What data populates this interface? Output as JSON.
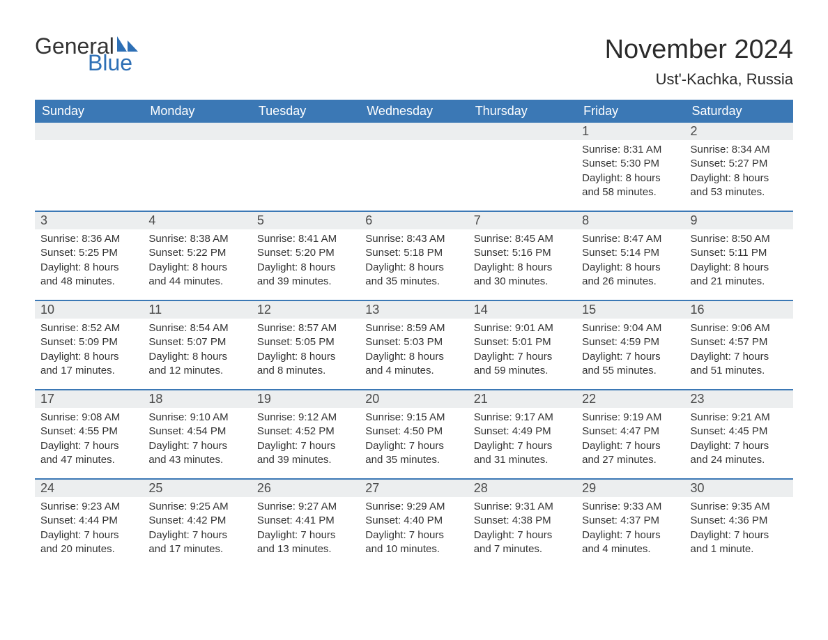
{
  "logo": {
    "line1": "General",
    "line2": "Blue",
    "accent_color": "#2d6fb5"
  },
  "title": "November 2024",
  "location": "Ust'-Kachka, Russia",
  "colors": {
    "header_bg": "#3b78b5",
    "header_text": "#ffffff",
    "rule": "#3b78b5",
    "daynum_bg": "#eceeef",
    "text": "#333333"
  },
  "daysOfWeek": [
    "Sunday",
    "Monday",
    "Tuesday",
    "Wednesday",
    "Thursday",
    "Friday",
    "Saturday"
  ],
  "weeks": [
    [
      {
        "empty": true
      },
      {
        "empty": true
      },
      {
        "empty": true
      },
      {
        "empty": true
      },
      {
        "empty": true
      },
      {
        "n": "1",
        "sunrise": "Sunrise: 8:31 AM",
        "sunset": "Sunset: 5:30 PM",
        "d1": "Daylight: 8 hours",
        "d2": "and 58 minutes."
      },
      {
        "n": "2",
        "sunrise": "Sunrise: 8:34 AM",
        "sunset": "Sunset: 5:27 PM",
        "d1": "Daylight: 8 hours",
        "d2": "and 53 minutes."
      }
    ],
    [
      {
        "n": "3",
        "sunrise": "Sunrise: 8:36 AM",
        "sunset": "Sunset: 5:25 PM",
        "d1": "Daylight: 8 hours",
        "d2": "and 48 minutes."
      },
      {
        "n": "4",
        "sunrise": "Sunrise: 8:38 AM",
        "sunset": "Sunset: 5:22 PM",
        "d1": "Daylight: 8 hours",
        "d2": "and 44 minutes."
      },
      {
        "n": "5",
        "sunrise": "Sunrise: 8:41 AM",
        "sunset": "Sunset: 5:20 PM",
        "d1": "Daylight: 8 hours",
        "d2": "and 39 minutes."
      },
      {
        "n": "6",
        "sunrise": "Sunrise: 8:43 AM",
        "sunset": "Sunset: 5:18 PM",
        "d1": "Daylight: 8 hours",
        "d2": "and 35 minutes."
      },
      {
        "n": "7",
        "sunrise": "Sunrise: 8:45 AM",
        "sunset": "Sunset: 5:16 PM",
        "d1": "Daylight: 8 hours",
        "d2": "and 30 minutes."
      },
      {
        "n": "8",
        "sunrise": "Sunrise: 8:47 AM",
        "sunset": "Sunset: 5:14 PM",
        "d1": "Daylight: 8 hours",
        "d2": "and 26 minutes."
      },
      {
        "n": "9",
        "sunrise": "Sunrise: 8:50 AM",
        "sunset": "Sunset: 5:11 PM",
        "d1": "Daylight: 8 hours",
        "d2": "and 21 minutes."
      }
    ],
    [
      {
        "n": "10",
        "sunrise": "Sunrise: 8:52 AM",
        "sunset": "Sunset: 5:09 PM",
        "d1": "Daylight: 8 hours",
        "d2": "and 17 minutes."
      },
      {
        "n": "11",
        "sunrise": "Sunrise: 8:54 AM",
        "sunset": "Sunset: 5:07 PM",
        "d1": "Daylight: 8 hours",
        "d2": "and 12 minutes."
      },
      {
        "n": "12",
        "sunrise": "Sunrise: 8:57 AM",
        "sunset": "Sunset: 5:05 PM",
        "d1": "Daylight: 8 hours",
        "d2": "and 8 minutes."
      },
      {
        "n": "13",
        "sunrise": "Sunrise: 8:59 AM",
        "sunset": "Sunset: 5:03 PM",
        "d1": "Daylight: 8 hours",
        "d2": "and 4 minutes."
      },
      {
        "n": "14",
        "sunrise": "Sunrise: 9:01 AM",
        "sunset": "Sunset: 5:01 PM",
        "d1": "Daylight: 7 hours",
        "d2": "and 59 minutes."
      },
      {
        "n": "15",
        "sunrise": "Sunrise: 9:04 AM",
        "sunset": "Sunset: 4:59 PM",
        "d1": "Daylight: 7 hours",
        "d2": "and 55 minutes."
      },
      {
        "n": "16",
        "sunrise": "Sunrise: 9:06 AM",
        "sunset": "Sunset: 4:57 PM",
        "d1": "Daylight: 7 hours",
        "d2": "and 51 minutes."
      }
    ],
    [
      {
        "n": "17",
        "sunrise": "Sunrise: 9:08 AM",
        "sunset": "Sunset: 4:55 PM",
        "d1": "Daylight: 7 hours",
        "d2": "and 47 minutes."
      },
      {
        "n": "18",
        "sunrise": "Sunrise: 9:10 AM",
        "sunset": "Sunset: 4:54 PM",
        "d1": "Daylight: 7 hours",
        "d2": "and 43 minutes."
      },
      {
        "n": "19",
        "sunrise": "Sunrise: 9:12 AM",
        "sunset": "Sunset: 4:52 PM",
        "d1": "Daylight: 7 hours",
        "d2": "and 39 minutes."
      },
      {
        "n": "20",
        "sunrise": "Sunrise: 9:15 AM",
        "sunset": "Sunset: 4:50 PM",
        "d1": "Daylight: 7 hours",
        "d2": "and 35 minutes."
      },
      {
        "n": "21",
        "sunrise": "Sunrise: 9:17 AM",
        "sunset": "Sunset: 4:49 PM",
        "d1": "Daylight: 7 hours",
        "d2": "and 31 minutes."
      },
      {
        "n": "22",
        "sunrise": "Sunrise: 9:19 AM",
        "sunset": "Sunset: 4:47 PM",
        "d1": "Daylight: 7 hours",
        "d2": "and 27 minutes."
      },
      {
        "n": "23",
        "sunrise": "Sunrise: 9:21 AM",
        "sunset": "Sunset: 4:45 PM",
        "d1": "Daylight: 7 hours",
        "d2": "and 24 minutes."
      }
    ],
    [
      {
        "n": "24",
        "sunrise": "Sunrise: 9:23 AM",
        "sunset": "Sunset: 4:44 PM",
        "d1": "Daylight: 7 hours",
        "d2": "and 20 minutes."
      },
      {
        "n": "25",
        "sunrise": "Sunrise: 9:25 AM",
        "sunset": "Sunset: 4:42 PM",
        "d1": "Daylight: 7 hours",
        "d2": "and 17 minutes."
      },
      {
        "n": "26",
        "sunrise": "Sunrise: 9:27 AM",
        "sunset": "Sunset: 4:41 PM",
        "d1": "Daylight: 7 hours",
        "d2": "and 13 minutes."
      },
      {
        "n": "27",
        "sunrise": "Sunrise: 9:29 AM",
        "sunset": "Sunset: 4:40 PM",
        "d1": "Daylight: 7 hours",
        "d2": "and 10 minutes."
      },
      {
        "n": "28",
        "sunrise": "Sunrise: 9:31 AM",
        "sunset": "Sunset: 4:38 PM",
        "d1": "Daylight: 7 hours",
        "d2": "and 7 minutes."
      },
      {
        "n": "29",
        "sunrise": "Sunrise: 9:33 AM",
        "sunset": "Sunset: 4:37 PM",
        "d1": "Daylight: 7 hours",
        "d2": "and 4 minutes."
      },
      {
        "n": "30",
        "sunrise": "Sunrise: 9:35 AM",
        "sunset": "Sunset: 4:36 PM",
        "d1": "Daylight: 7 hours",
        "d2": "and 1 minute."
      }
    ]
  ]
}
